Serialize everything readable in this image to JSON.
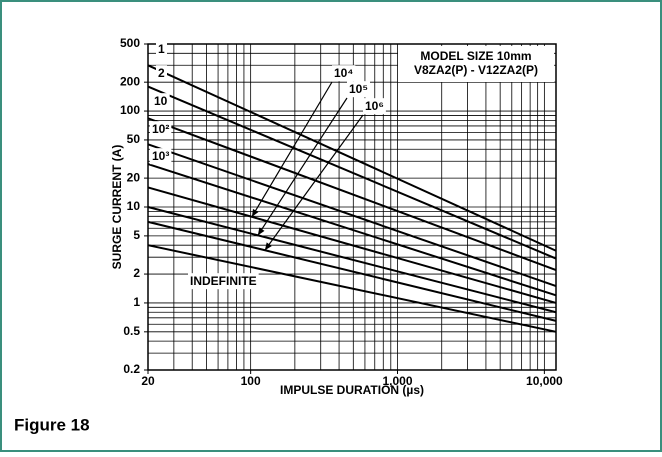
{
  "chart_data": {
    "type": "line",
    "figure_label": "Figure 18",
    "annotations": [
      "MODEL SIZE 10mm",
      "V8ZA2(P) - V12ZA2(P)"
    ],
    "xlabel": "IMPULSE DURATION (µs)",
    "ylabel": "SURGE CURRENT (A)",
    "log_x": true,
    "log_y": true,
    "grid": true,
    "color": "#000000",
    "xlim": [
      20,
      12000
    ],
    "ylim": [
      0.2,
      500
    ],
    "xticks": [
      20,
      100,
      {
        "value": 1000,
        "label": "1,000"
      },
      {
        "value": 10000,
        "label": "10,000"
      }
    ],
    "yticks": [
      0.2,
      0.5,
      1,
      2,
      5,
      10,
      20,
      50,
      100,
      200,
      500
    ],
    "x": [
      20,
      12000
    ],
    "series": [
      {
        "name": "1",
        "values": [
          300,
          3.5
        ]
      },
      {
        "name": "2",
        "values": [
          180,
          2.9
        ]
      },
      {
        "name": "10",
        "values": [
          84,
          2.2
        ]
      },
      {
        "name": "10²",
        "values": [
          45,
          1.5
        ]
      },
      {
        "name": "10³",
        "values": [
          28,
          1.2
        ]
      },
      {
        "name": "10⁴",
        "values": [
          16,
          1.0
        ]
      },
      {
        "name": "10⁵",
        "values": [
          10,
          0.8
        ]
      },
      {
        "name": "10⁶",
        "values": [
          7,
          0.65
        ]
      },
      {
        "name": "INDEFINITE",
        "values": [
          4,
          0.5
        ]
      }
    ]
  }
}
